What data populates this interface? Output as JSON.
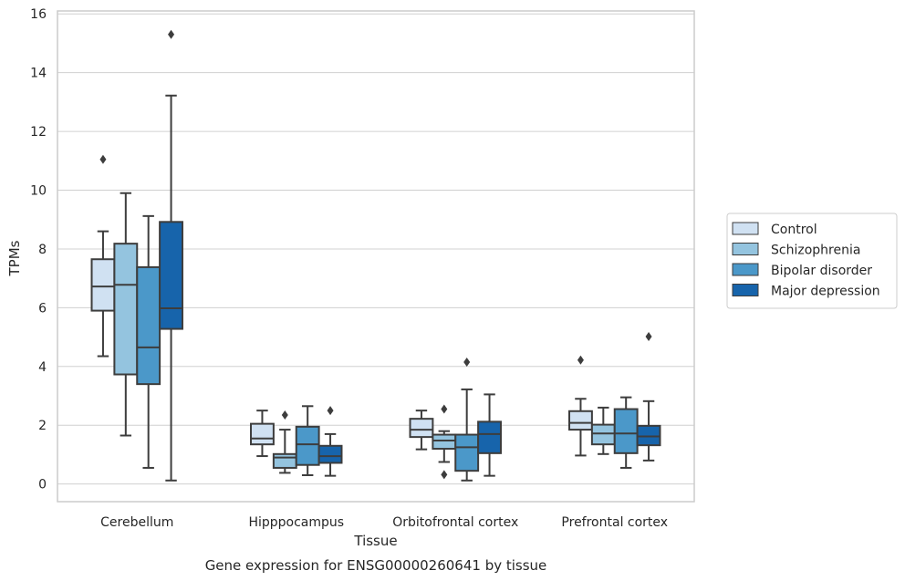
{
  "chart_data": {
    "type": "box",
    "caption": "Gene expression for ENSG00000260641 by tissue",
    "xlabel": "Tissue",
    "ylabel": "TPMs",
    "ylim": [
      -0.6,
      16.1
    ],
    "yticks": [
      0,
      2,
      4,
      6,
      8,
      10,
      12,
      14,
      16
    ],
    "grid": "horizontal",
    "legend_position": "right",
    "categories": [
      "Cerebellum",
      "Hipppocampus",
      "Orbitofrontal cortex",
      "Prefrontal cortex"
    ],
    "series": [
      {
        "name": "Control",
        "color": "#d0e1f2",
        "boxes": [
          {
            "whisker_low": 4.35,
            "q1": 5.9,
            "median": 6.72,
            "q3": 7.65,
            "whisker_high": 8.6,
            "outliers": [
              11.05
            ]
          },
          {
            "whisker_low": 0.95,
            "q1": 1.35,
            "median": 1.55,
            "q3": 2.05,
            "whisker_high": 2.5,
            "outliers": []
          },
          {
            "whisker_low": 1.18,
            "q1": 1.6,
            "median": 1.85,
            "q3": 2.22,
            "whisker_high": 2.5,
            "outliers": []
          },
          {
            "whisker_low": 0.97,
            "q1": 1.85,
            "median": 2.08,
            "q3": 2.48,
            "whisker_high": 2.9,
            "outliers": [
              4.22
            ]
          }
        ]
      },
      {
        "name": "Schizophrenia",
        "color": "#94c4df",
        "boxes": [
          {
            "whisker_low": 1.65,
            "q1": 3.73,
            "median": 6.78,
            "q3": 8.18,
            "whisker_high": 9.9,
            "outliers": []
          },
          {
            "whisker_low": 0.38,
            "q1": 0.55,
            "median": 0.9,
            "q3": 1.02,
            "whisker_high": 1.85,
            "outliers": [
              2.35
            ]
          },
          {
            "whisker_low": 0.75,
            "q1": 1.2,
            "median": 1.48,
            "q3": 1.68,
            "whisker_high": 1.8,
            "outliers": [
              2.55,
              0.32
            ]
          },
          {
            "whisker_low": 1.02,
            "q1": 1.35,
            "median": 1.72,
            "q3": 2.02,
            "whisker_high": 2.6,
            "outliers": []
          }
        ]
      },
      {
        "name": "Bipolar disorder",
        "color": "#4b98c9",
        "boxes": [
          {
            "whisker_low": 0.55,
            "q1": 3.4,
            "median": 4.65,
            "q3": 7.38,
            "whisker_high": 9.12,
            "outliers": []
          },
          {
            "whisker_low": 0.3,
            "q1": 0.65,
            "median": 1.35,
            "q3": 1.95,
            "whisker_high": 2.65,
            "outliers": []
          },
          {
            "whisker_low": 0.12,
            "q1": 0.45,
            "median": 1.25,
            "q3": 1.68,
            "whisker_high": 3.22,
            "outliers": [
              4.15
            ]
          },
          {
            "whisker_low": 0.55,
            "q1": 1.05,
            "median": 1.72,
            "q3": 2.55,
            "whisker_high": 2.95,
            "outliers": []
          }
        ]
      },
      {
        "name": "Major depression",
        "color": "#1764ab",
        "boxes": [
          {
            "whisker_low": 0.12,
            "q1": 5.28,
            "median": 5.98,
            "q3": 8.92,
            "whisker_high": 13.22,
            "outliers": [
              15.3
            ]
          },
          {
            "whisker_low": 0.28,
            "q1": 0.72,
            "median": 0.95,
            "q3": 1.3,
            "whisker_high": 1.7,
            "outliers": [
              2.5
            ]
          },
          {
            "whisker_low": 0.28,
            "q1": 1.05,
            "median": 1.7,
            "q3": 2.12,
            "whisker_high": 3.05,
            "outliers": []
          },
          {
            "whisker_low": 0.8,
            "q1": 1.32,
            "median": 1.62,
            "q3": 1.98,
            "whisker_high": 2.82,
            "outliers": [
              5.02
            ]
          }
        ]
      }
    ]
  }
}
